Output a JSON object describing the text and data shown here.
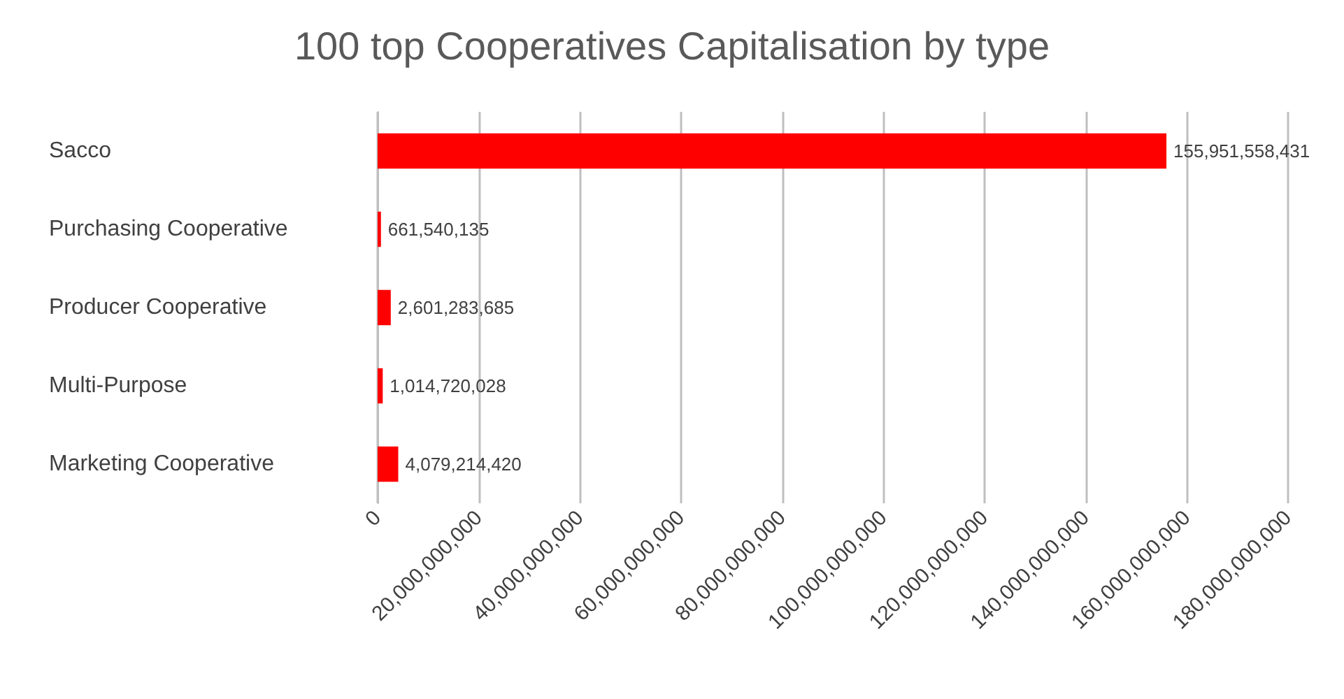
{
  "chart_data": {
    "type": "bar",
    "orientation": "horizontal",
    "title": "100 top Cooperatives Capitalisation by type",
    "categories": [
      "Sacco",
      "Purchasing Cooperative",
      "Producer Cooperative",
      "Multi-Purpose",
      "Marketing Cooperative"
    ],
    "values": [
      155951558431,
      661540135,
      2601283685,
      1014720028,
      4079214420
    ],
    "color": "#ff0000",
    "xlim": [
      0,
      180000000000
    ],
    "xticks": [
      {
        "value": 0,
        "label": "0"
      },
      {
        "value": 20000000000,
        "label": "20,000,000,000"
      },
      {
        "value": 40000000000,
        "label": "40,000,000,000"
      },
      {
        "value": 60000000000,
        "label": "60,000,000,000"
      },
      {
        "value": 80000000000,
        "label": "80,000,000,000"
      },
      {
        "value": 100000000000,
        "label": "100,000,000,000"
      },
      {
        "value": 120000000000,
        "label": "120,000,000,000"
      },
      {
        "value": 140000000000,
        "label": "140,000,000,000"
      },
      {
        "value": 160000000000,
        "label": "160,000,000,000"
      },
      {
        "value": 180000000000,
        "label": "180,000,000,000"
      }
    ],
    "value_labels": [
      "155,951,558,431",
      "661,540,135",
      "2,601,283,685",
      "1,014,720,028",
      "4,079,214,420"
    ],
    "grid": "x"
  }
}
